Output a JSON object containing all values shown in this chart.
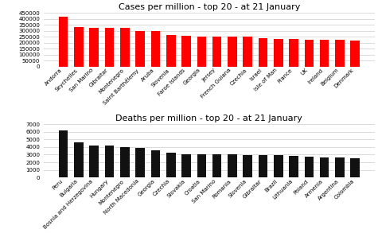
{
  "cases_countries": [
    "Andorra",
    "Seychelles",
    "San Marino",
    "Gibraltar",
    "Montenegro",
    "Saint Barthélemy",
    "Aruba",
    "Slovenia",
    "Faroe Islands",
    "Georgia",
    "Jersey",
    "French Guiana",
    "Czechia",
    "Israel",
    "Isle of Man",
    "France",
    "UK",
    "Ireland",
    "Belgium",
    "Denmark"
  ],
  "cases_values": [
    420000,
    330000,
    328000,
    327000,
    323000,
    300000,
    295000,
    268000,
    256000,
    254000,
    252000,
    251000,
    249000,
    237000,
    230000,
    228000,
    226000,
    225000,
    223000,
    215000
  ],
  "cases_color": "#ff0000",
  "cases_title": "Cases per million - top 20 - at 21 January",
  "cases_ylim": [
    0,
    450000
  ],
  "cases_yticks": [
    0,
    50000,
    100000,
    150000,
    200000,
    250000,
    300000,
    350000,
    400000,
    450000
  ],
  "deaths_countries": [
    "Peru",
    "Bulgaria",
    "Bosnia and Herzegovina",
    "Hungary",
    "Montenegro",
    "North Macedonia",
    "Georgia",
    "Czechia",
    "Slovakia",
    "Croatia",
    "San Marino",
    "Romania",
    "Slovenia",
    "Gibraltar",
    "Brazil",
    "Lithuania",
    "Poland",
    "Armenia",
    "Argentina",
    "Colombia"
  ],
  "deaths_values": [
    6200,
    4650,
    4200,
    4200,
    4000,
    3900,
    3550,
    3300,
    3100,
    3100,
    3050,
    3000,
    2950,
    2950,
    2900,
    2800,
    2700,
    2650,
    2600,
    2500
  ],
  "deaths_color": "#111111",
  "deaths_title": "Deaths per million - top 20 - at 21 January",
  "deaths_ylim": [
    0,
    7000
  ],
  "deaths_yticks": [
    0,
    1000,
    2000,
    3000,
    4000,
    5000,
    6000,
    7000
  ],
  "background_color": "#ffffff",
  "grid_color": "#cccccc",
  "title_fontsize": 8,
  "tick_fontsize": 5,
  "label_rotation": 45
}
